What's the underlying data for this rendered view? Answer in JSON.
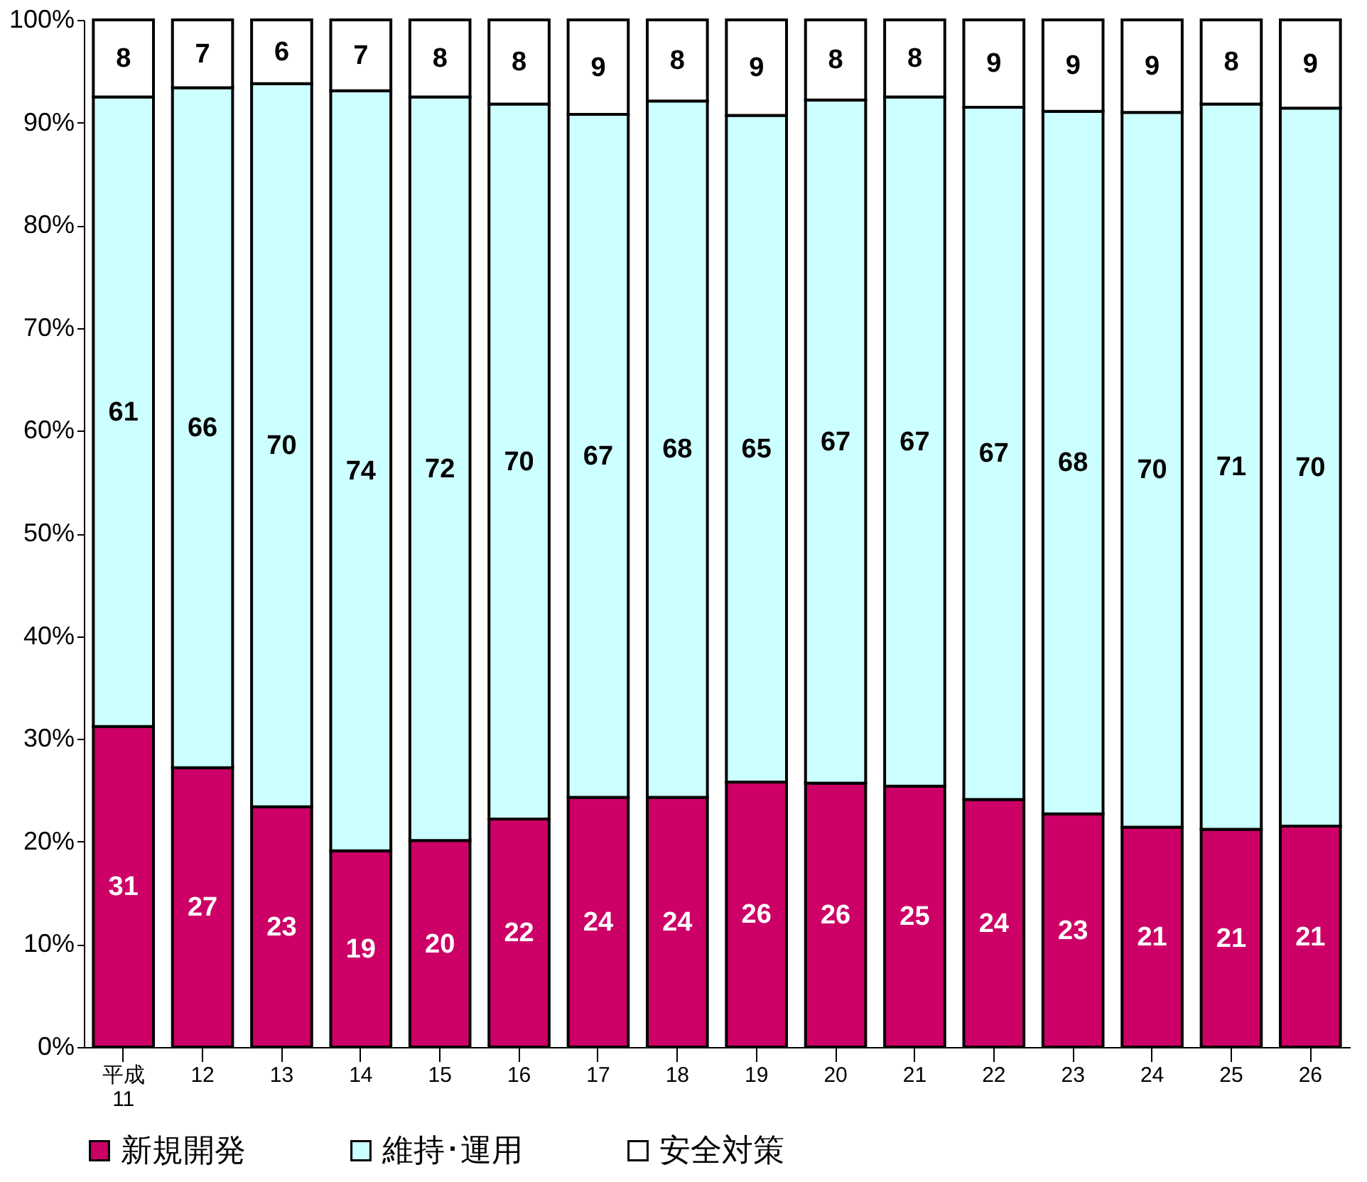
{
  "chart_data": {
    "type": "bar",
    "stacked": true,
    "categories": [
      "平成\n11",
      "12",
      "13",
      "14",
      "15",
      "16",
      "17",
      "18",
      "19",
      "20",
      "21",
      "22",
      "23",
      "24",
      "25",
      "26"
    ],
    "series": [
      {
        "name": "新規開発",
        "color": "#cc0066",
        "values": [
          31.2,
          27.2,
          23.4,
          19.1,
          20.1,
          22.2,
          24.3,
          24.3,
          25.8,
          25.7,
          25.4,
          24.1,
          22.7,
          21.4,
          21.2,
          21.5
        ],
        "value_labels": [
          "31",
          "27",
          "23",
          "19",
          "20",
          "22",
          "24",
          "24",
          "26",
          "26",
          "25",
          "24",
          "23",
          "21",
          "21",
          "21"
        ]
      },
      {
        "name": "維持･運用",
        "color": "#ccffff",
        "values": [
          61.3,
          66.2,
          70.4,
          74.0,
          72.4,
          69.6,
          66.5,
          67.8,
          64.9,
          66.5,
          67.1,
          67.4,
          68.4,
          69.6,
          70.6,
          69.9
        ],
        "value_labels": [
          "61",
          "66",
          "70",
          "74",
          "72",
          "70",
          "67",
          "68",
          "65",
          "67",
          "67",
          "67",
          "68",
          "70",
          "71",
          "70"
        ]
      },
      {
        "name": "安全対策",
        "color": "#ffffff",
        "values": [
          7.5,
          6.6,
          6.2,
          6.9,
          7.5,
          8.2,
          9.2,
          7.9,
          9.3,
          7.8,
          7.5,
          8.5,
          8.9,
          9.0,
          8.2,
          8.6
        ],
        "value_labels": [
          "8",
          "7",
          "6",
          "7",
          "8",
          "8",
          "9",
          "8",
          "9",
          "8",
          "8",
          "9",
          "9",
          "9",
          "8",
          "9"
        ]
      }
    ],
    "ylim": [
      0,
      100
    ],
    "yticks": [
      {
        "value": 0,
        "label": "0%"
      },
      {
        "value": 10,
        "label": "10%"
      },
      {
        "value": 20,
        "label": "20%"
      },
      {
        "value": 30,
        "label": "30%"
      },
      {
        "value": 40,
        "label": "40%"
      },
      {
        "value": 50,
        "label": "50%"
      },
      {
        "value": 60,
        "label": "60%"
      },
      {
        "value": 70,
        "label": "70%"
      },
      {
        "value": 80,
        "label": "80%"
      },
      {
        "value": 90,
        "label": "90%"
      },
      {
        "value": 100,
        "label": "100%"
      }
    ],
    "grid": false,
    "legend": "bottom"
  }
}
